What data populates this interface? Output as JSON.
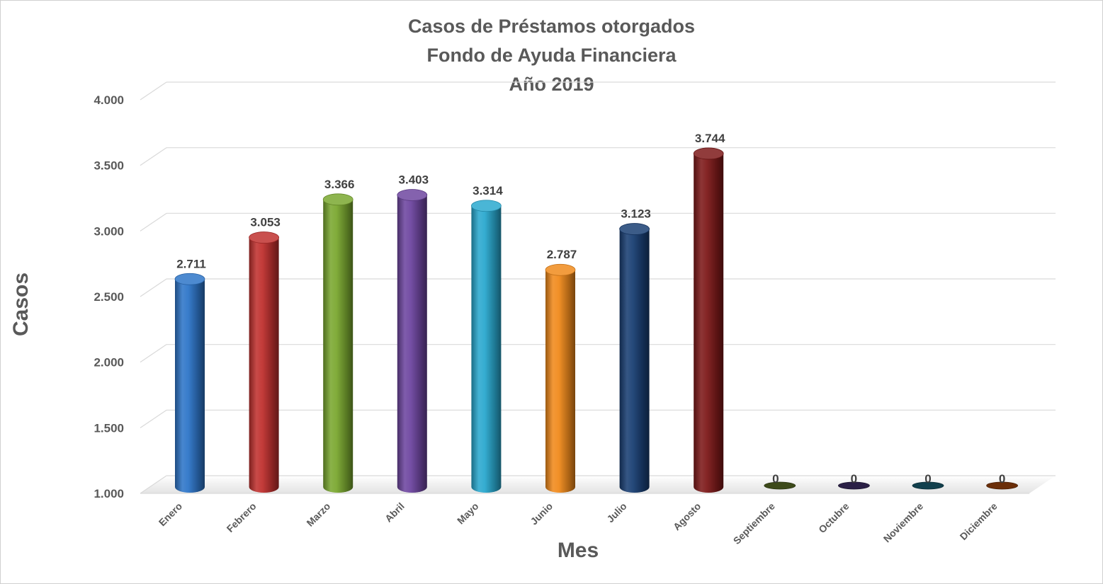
{
  "chart_data": {
    "type": "bar",
    "title_lines": [
      "Casos de Préstamos otorgados",
      "Fondo de Ayuda Financiera",
      "Año 2019"
    ],
    "xlabel": "Mes",
    "ylabel": "Casos",
    "ylim": [
      1000,
      4000
    ],
    "yticks": [
      1000,
      1500,
      2000,
      2500,
      3000,
      3500,
      4000
    ],
    "ytick_labels": [
      "1.000",
      "1.500",
      "2.000",
      "2.500",
      "3.000",
      "3.500",
      "4.000"
    ],
    "grid": true,
    "categories": [
      "Enero",
      "Febrero",
      "Marzo",
      "Abril",
      "Mayo",
      "Junio",
      "Julio",
      "Agosto",
      "Septiembre",
      "Octubre",
      "Noviembre",
      "Diciembre"
    ],
    "values": [
      2711,
      3053,
      3366,
      3403,
      3314,
      2787,
      3123,
      3744,
      0,
      0,
      0,
      0
    ],
    "value_labels": [
      "2.711",
      "3.053",
      "3.366",
      "3.403",
      "3.314",
      "2.787",
      "3.123",
      "3.744",
      "0",
      "0",
      "0",
      "0"
    ],
    "colors": [
      "#2e75c8",
      "#c0312f",
      "#7aa830",
      "#6e46a0",
      "#2aa9cf",
      "#f08a1c",
      "#1a3f73",
      "#7e1a1a",
      "#3d4a1a",
      "#2a1f45",
      "#12404d",
      "#6b2e08"
    ]
  }
}
